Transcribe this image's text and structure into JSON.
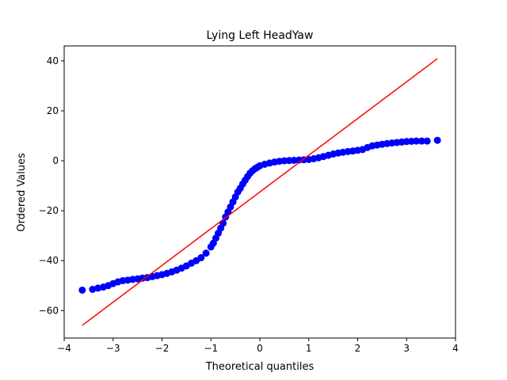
{
  "chart_data": {
    "type": "scatter",
    "title": "Lying Left HeadYaw",
    "xlabel": "Theoretical quantiles",
    "ylabel": "Ordered Values",
    "xlim": [
      -4,
      4
    ],
    "ylim": [
      -71,
      46
    ],
    "x_ticks": [
      -4,
      -3,
      -2,
      -1,
      0,
      1,
      2,
      3,
      4
    ],
    "y_ticks": [
      -60,
      -40,
      -20,
      0,
      20,
      40
    ],
    "grid": false,
    "legend": "none",
    "colors": {
      "points": "#0000ff",
      "line": "#ff0000"
    },
    "series": [
      {
        "kind": "points",
        "points": [
          [
            -3.63,
            -51.8
          ],
          [
            -3.42,
            -51.5
          ],
          [
            -3.31,
            -51.0
          ],
          [
            -3.2,
            -50.6
          ],
          [
            -3.1,
            -50.0
          ],
          [
            -3.0,
            -49.2
          ],
          [
            -2.9,
            -48.5
          ],
          [
            -2.8,
            -48.0
          ],
          [
            -2.7,
            -47.8
          ],
          [
            -2.6,
            -47.5
          ],
          [
            -2.5,
            -47.3
          ],
          [
            -2.4,
            -47.0
          ],
          [
            -2.3,
            -46.8
          ],
          [
            -2.2,
            -46.4
          ],
          [
            -2.1,
            -46.0
          ],
          [
            -2.0,
            -45.6
          ],
          [
            -1.9,
            -45.1
          ],
          [
            -1.8,
            -44.5
          ],
          [
            -1.7,
            -43.8
          ],
          [
            -1.6,
            -43.0
          ],
          [
            -1.5,
            -42.1
          ],
          [
            -1.4,
            -41.0
          ],
          [
            -1.3,
            -40.0
          ],
          [
            -1.2,
            -38.8
          ],
          [
            -1.1,
            -37.0
          ],
          [
            -1.0,
            -34.5
          ],
          [
            -0.95,
            -33.0
          ],
          [
            -0.9,
            -31.0
          ],
          [
            -0.85,
            -29.0
          ],
          [
            -0.8,
            -27.0
          ],
          [
            -0.75,
            -25.0
          ],
          [
            -0.7,
            -22.5
          ],
          [
            -0.65,
            -20.5
          ],
          [
            -0.6,
            -18.5
          ],
          [
            -0.55,
            -16.5
          ],
          [
            -0.5,
            -14.5
          ],
          [
            -0.45,
            -12.5
          ],
          [
            -0.4,
            -11.0
          ],
          [
            -0.35,
            -9.3
          ],
          [
            -0.3,
            -7.8
          ],
          [
            -0.25,
            -6.3
          ],
          [
            -0.2,
            -5.0
          ],
          [
            -0.15,
            -4.0
          ],
          [
            -0.1,
            -3.2
          ],
          [
            -0.05,
            -2.6
          ],
          [
            0.0,
            -2.0
          ],
          [
            0.1,
            -1.4
          ],
          [
            0.2,
            -0.9
          ],
          [
            0.3,
            -0.5
          ],
          [
            0.4,
            -0.2
          ],
          [
            0.5,
            0.0
          ],
          [
            0.6,
            0.1
          ],
          [
            0.7,
            0.2
          ],
          [
            0.8,
            0.3
          ],
          [
            0.9,
            0.4
          ],
          [
            1.0,
            0.5
          ],
          [
            1.1,
            0.8
          ],
          [
            1.2,
            1.2
          ],
          [
            1.3,
            1.7
          ],
          [
            1.4,
            2.2
          ],
          [
            1.5,
            2.7
          ],
          [
            1.6,
            3.1
          ],
          [
            1.7,
            3.4
          ],
          [
            1.8,
            3.7
          ],
          [
            1.9,
            3.9
          ],
          [
            2.0,
            4.2
          ],
          [
            2.1,
            4.5
          ],
          [
            2.2,
            5.3
          ],
          [
            2.3,
            6.0
          ],
          [
            2.4,
            6.3
          ],
          [
            2.5,
            6.6
          ],
          [
            2.6,
            6.9
          ],
          [
            2.7,
            7.1
          ],
          [
            2.8,
            7.3
          ],
          [
            2.9,
            7.5
          ],
          [
            3.0,
            7.7
          ],
          [
            3.1,
            7.8
          ],
          [
            3.2,
            7.9
          ],
          [
            3.31,
            7.9
          ],
          [
            3.42,
            7.9
          ],
          [
            3.63,
            8.2
          ]
        ]
      },
      {
        "kind": "line",
        "points": [
          [
            -3.63,
            -65.9
          ],
          [
            3.63,
            40.9
          ]
        ]
      }
    ]
  }
}
